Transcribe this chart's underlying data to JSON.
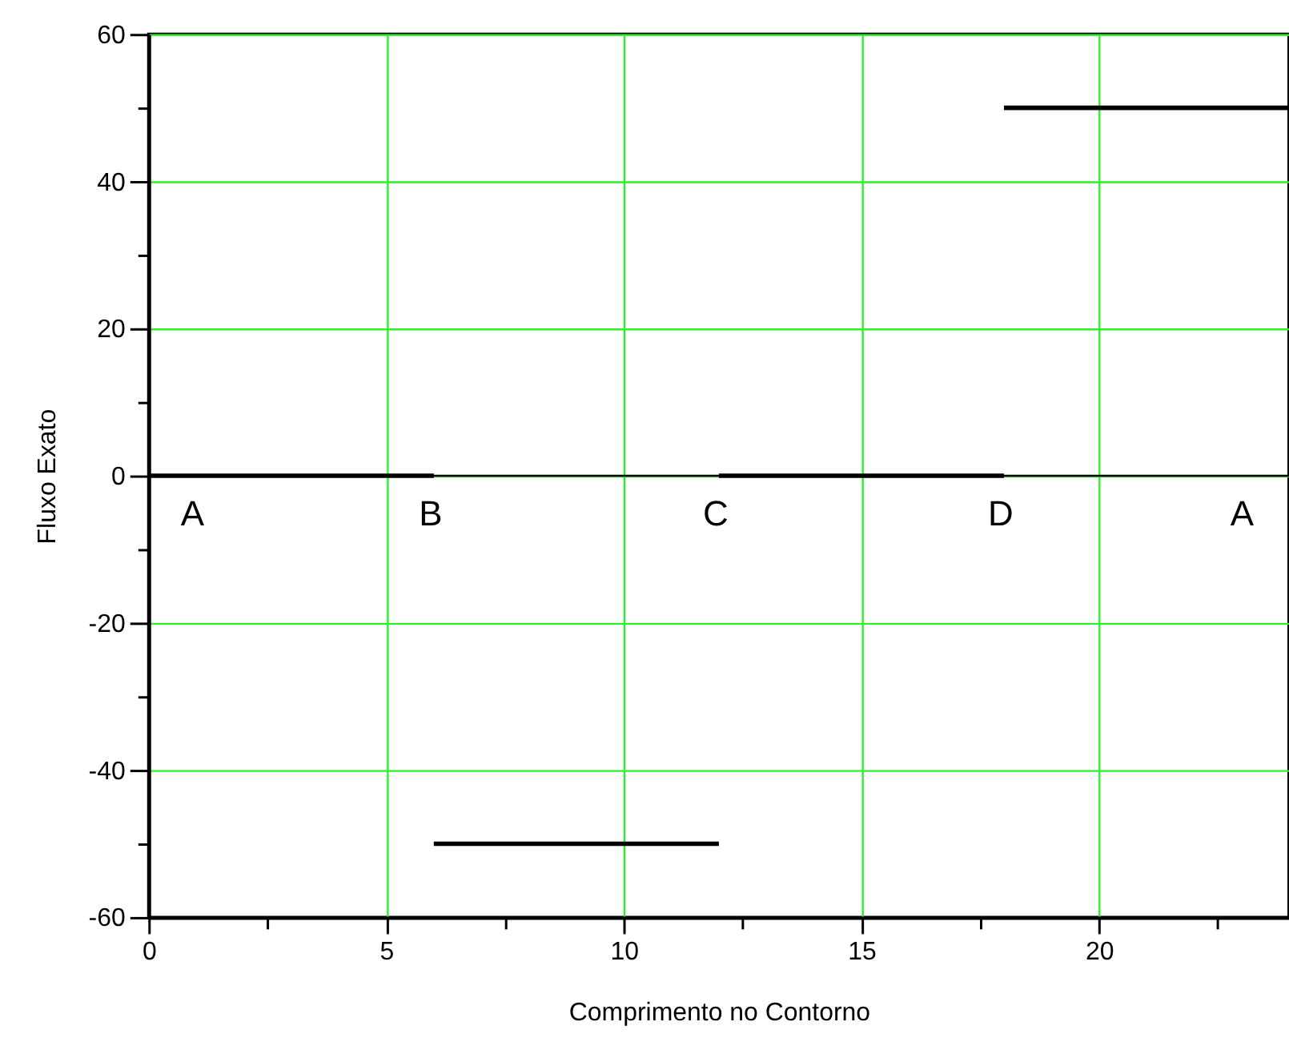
{
  "chart_data": {
    "type": "line",
    "xlabel": "Comprimento no Contorno",
    "ylabel": "Fluxo Exato",
    "series": [
      {
        "color": "#000000",
        "x": [
          0,
          6
        ],
        "values": [
          0,
          0
        ]
      },
      {
        "color": "#000000",
        "x": [
          6,
          12
        ],
        "values": [
          -50,
          -50
        ]
      },
      {
        "color": "#000000",
        "x": [
          12,
          18
        ],
        "values": [
          0,
          0
        ]
      },
      {
        "color": "#000000",
        "x": [
          18,
          24
        ],
        "values": [
          50,
          50
        ]
      }
    ],
    "xlim": [
      0,
      24
    ],
    "ylim": [
      -60,
      60
    ],
    "xticks": [
      0,
      {
        "value": 2.5,
        "label": null
      },
      5,
      {
        "value": 7.5,
        "label": null
      },
      10,
      {
        "value": 12.5,
        "label": null
      },
      15,
      {
        "value": 17.5,
        "label": null
      },
      20,
      {
        "value": 22.5,
        "label": null
      }
    ],
    "yticks": [
      -60,
      {
        "value": -50,
        "label": null
      },
      -40,
      {
        "value": -30,
        "label": null
      },
      -20,
      {
        "value": -10,
        "label": null
      },
      0,
      {
        "value": 10,
        "label": null
      },
      20,
      {
        "value": 30,
        "label": null
      },
      40,
      {
        "value": 50,
        "label": null
      },
      60
    ],
    "grid": true,
    "marker": "none",
    "line_style": "solid",
    "ref_lines": [
      {
        "axis": "y",
        "value": 0,
        "color": "#000000"
      }
    ],
    "annotations": [
      {
        "text": "A",
        "x": 0,
        "y": 0
      },
      {
        "text": "B",
        "x": 6,
        "y": 0
      },
      {
        "text": "C",
        "x": 12,
        "y": 0
      },
      {
        "text": "D",
        "x": 18,
        "y": 0
      },
      {
        "text": "A",
        "x": 24,
        "y": 0
      }
    ]
  }
}
